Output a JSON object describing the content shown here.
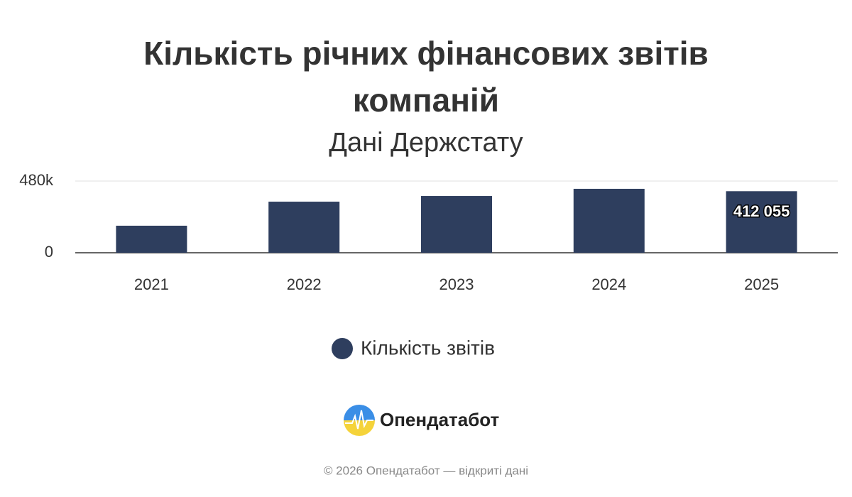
{
  "chart_data": {
    "type": "bar",
    "title": "Кількість річних фінансових звітів компаній",
    "subtitle": "Дані Держстату",
    "categories": [
      "2021",
      "2022",
      "2023",
      "2024",
      "2025"
    ],
    "series": [
      {
        "name": "Кількість звітів",
        "color": "#2e3e5e",
        "values": [
          181000,
          342000,
          380000,
          428000,
          412055
        ],
        "value_labels": [
          null,
          null,
          null,
          null,
          "412 055"
        ]
      }
    ],
    "ylim": [
      0,
      480000
    ],
    "yticks": [
      0,
      {
        "value": 480000,
        "label": "480k"
      }
    ],
    "grid": true,
    "legend": "bottom"
  },
  "footer": {
    "brand": "Опендатабот",
    "copyright": "© 2026 Опендатабот — відкриті дані"
  }
}
